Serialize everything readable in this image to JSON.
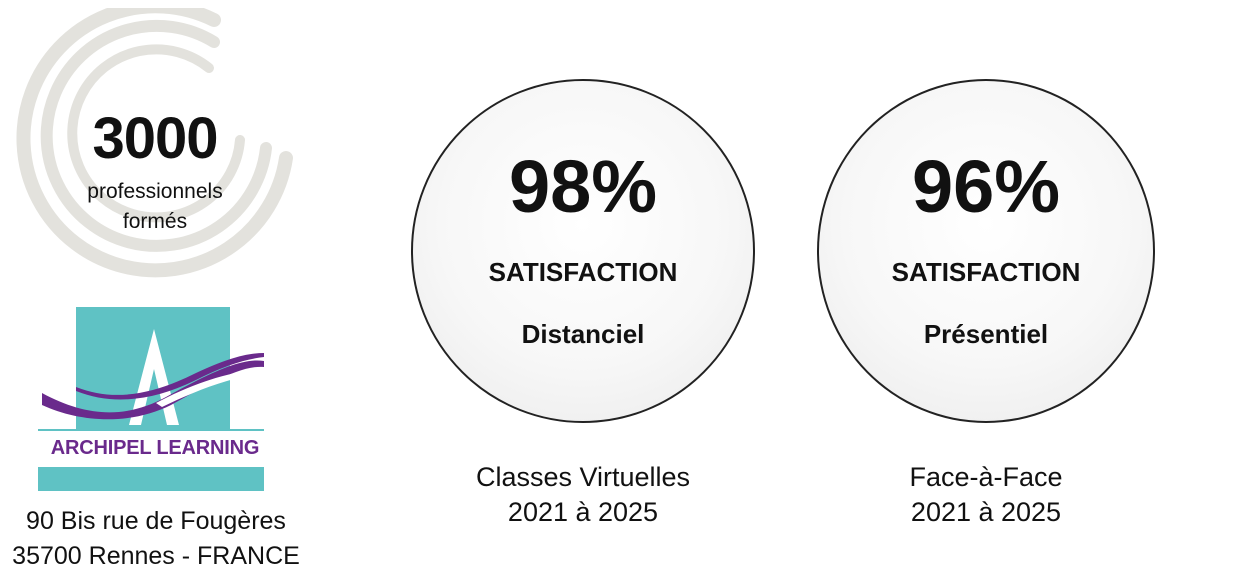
{
  "stat": {
    "number": "3000",
    "label_line1": "professionnels",
    "label_line2": "formés"
  },
  "logo": {
    "text": "ARCHIPEL LEARNING",
    "colors": {
      "teal": "#5fc2c4",
      "purple": "#6a2a8c"
    }
  },
  "address": {
    "line1": "90 Bis rue de Fougères",
    "line2": "35700 Rennes - FRANCE"
  },
  "cards": [
    {
      "percent": "98%",
      "title": "SATISFACTION",
      "mode": "Distanciel",
      "caption_line1": "Classes Virtuelles",
      "caption_line2": "2021 à 2025"
    },
    {
      "percent": "96%",
      "title": "SATISFACTION",
      "mode": "Présentiel",
      "caption_line1": "Face-à-Face",
      "caption_line2": "2021 à 2025"
    }
  ]
}
